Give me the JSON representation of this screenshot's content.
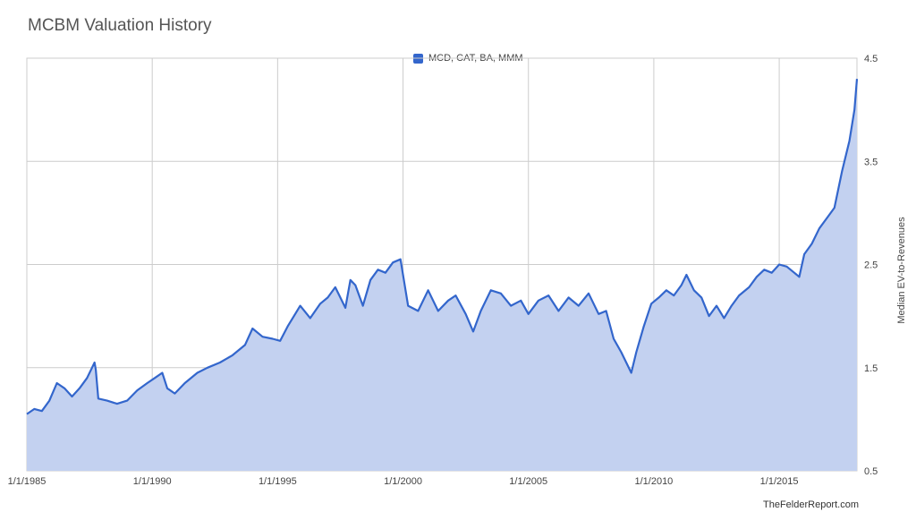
{
  "chart_data": {
    "type": "area",
    "title": "MCBM Valuation History",
    "ylabel": "Median EV-to-Revenues",
    "xlabel": "",
    "source": "TheFelderReport.com",
    "legend_position": "top",
    "y_axis_side": "right",
    "grid": true,
    "ylim": [
      0.5,
      4.5
    ],
    "y_ticks": [
      0.5,
      1.5,
      2.5,
      3.5,
      4.5
    ],
    "x_ticks": [
      "1/1/1985",
      "1/1/1990",
      "1/1/1995",
      "1/1/2000",
      "1/1/2005",
      "1/1/2010",
      "1/1/2015"
    ],
    "xlim": [
      1985.0,
      2018.1
    ],
    "series": [
      {
        "name": "MCD, CAT, BA, MMM",
        "color": "#3366cc",
        "fill": "#c3d1f0",
        "x": [
          1985.0,
          1985.3,
          1985.6,
          1985.9,
          1986.2,
          1986.5,
          1986.8,
          1987.1,
          1987.4,
          1987.7,
          1987.75,
          1987.85,
          1988.2,
          1988.6,
          1989.0,
          1989.4,
          1989.8,
          1990.1,
          1990.4,
          1990.6,
          1990.9,
          1991.3,
          1991.8,
          1992.2,
          1992.7,
          1993.2,
          1993.7,
          1994.0,
          1994.4,
          1994.8,
          1995.1,
          1995.4,
          1995.7,
          1995.9,
          1996.3,
          1996.7,
          1997.0,
          1997.3,
          1997.7,
          1997.9,
          1998.1,
          1998.4,
          1998.7,
          1999.0,
          1999.3,
          1999.6,
          1999.9,
          2000.2,
          2000.6,
          2001.0,
          2001.4,
          2001.8,
          2002.1,
          2002.5,
          2002.8,
          2003.1,
          2003.5,
          2003.9,
          2004.3,
          2004.7,
          2005.0,
          2005.4,
          2005.8,
          2006.2,
          2006.6,
          2007.0,
          2007.4,
          2007.8,
          2008.1,
          2008.4,
          2008.7,
          2008.9,
          2009.1,
          2009.3,
          2009.6,
          2009.9,
          2010.2,
          2010.5,
          2010.8,
          2011.1,
          2011.3,
          2011.6,
          2011.9,
          2012.2,
          2012.5,
          2012.8,
          2013.1,
          2013.4,
          2013.8,
          2014.1,
          2014.4,
          2014.7,
          2015.0,
          2015.3,
          2015.6,
          2015.8,
          2016.0,
          2016.3,
          2016.6,
          2016.9,
          2017.2,
          2017.5,
          2017.8,
          2018.0,
          2018.1
        ],
        "values": [
          1.05,
          1.1,
          1.08,
          1.18,
          1.35,
          1.3,
          1.22,
          1.3,
          1.4,
          1.55,
          1.48,
          1.2,
          1.18,
          1.15,
          1.18,
          1.28,
          1.35,
          1.4,
          1.45,
          1.3,
          1.25,
          1.35,
          1.45,
          1.5,
          1.55,
          1.62,
          1.72,
          1.88,
          1.8,
          1.78,
          1.76,
          1.9,
          2.02,
          2.1,
          1.98,
          2.12,
          2.18,
          2.28,
          2.08,
          2.35,
          2.3,
          2.1,
          2.35,
          2.45,
          2.42,
          2.52,
          2.55,
          2.1,
          2.05,
          2.25,
          2.05,
          2.15,
          2.2,
          2.02,
          1.85,
          2.05,
          2.25,
          2.22,
          2.1,
          2.15,
          2.02,
          2.15,
          2.2,
          2.05,
          2.18,
          2.1,
          2.22,
          2.02,
          2.05,
          1.78,
          1.65,
          1.55,
          1.45,
          1.65,
          1.9,
          2.12,
          2.18,
          2.25,
          2.2,
          2.3,
          2.4,
          2.25,
          2.18,
          2.0,
          2.1,
          1.98,
          2.1,
          2.2,
          2.28,
          2.38,
          2.45,
          2.42,
          2.5,
          2.48,
          2.42,
          2.38,
          2.6,
          2.7,
          2.85,
          2.95,
          3.05,
          3.4,
          3.7,
          4.0,
          4.3
        ]
      }
    ]
  }
}
